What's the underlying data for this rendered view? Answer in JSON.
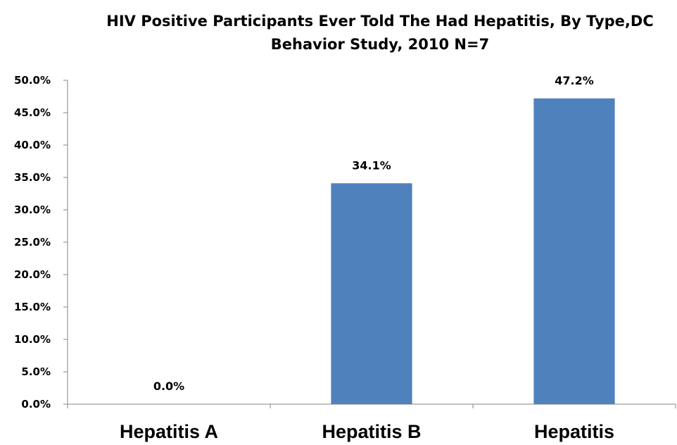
{
  "chart_data": {
    "type": "bar",
    "title": "HIV Positive Participants Ever Told The Had Hepatitis, By Type,DC Behavior Study, 2010 N=7",
    "categories": [
      "Hepatitis A",
      "Hepatitis B",
      "Hepatitis"
    ],
    "values": [
      0.0,
      34.1,
      47.2
    ],
    "data_labels": [
      "0.0%",
      "34.1%",
      "47.2%"
    ],
    "y_ticks": [
      "0.0%",
      "5.0%",
      "10.0%",
      "15.0%",
      "20.0%",
      "25.0%",
      "30.0%",
      "35.0%",
      "40.0%",
      "45.0%",
      "50.0%"
    ],
    "ylim": [
      0,
      50
    ],
    "xlabel": "",
    "ylabel": "",
    "grid": false,
    "legend": "none",
    "bar_color": "#4F81BD"
  }
}
